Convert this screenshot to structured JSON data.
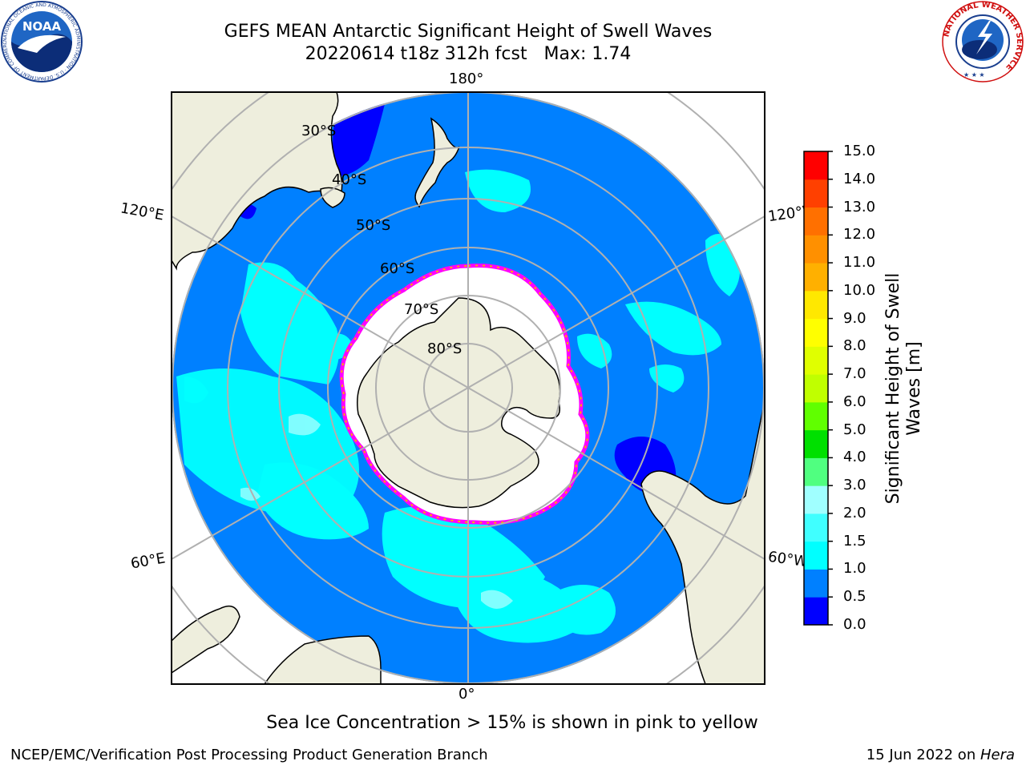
{
  "header": {
    "title": "GEFS MEAN Antarctic Significant Height of Swell Waves",
    "subtitle": "20220614 t18z 312h fcst   Max: 1.74"
  },
  "logos": {
    "noaa_text": "NOAA",
    "noaa_ring_text": "NATIONAL OCEANIC AND ATMOSPHERIC ADMINISTRATION · U.S. DEPARTMENT OF COMMERCE",
    "nws_ring_text": "NATIONAL WEATHER SERVICE"
  },
  "map": {
    "projection": "south-polar-stereographic",
    "longitude_labels": {
      "top": "180°",
      "bottom": "0°",
      "left_upper": "120°E",
      "left_lower": "60°E",
      "right_upper": "120°W",
      "right_lower": "60°W"
    },
    "latitude_labels": [
      "30°S",
      "40°S",
      "50°S",
      "60°S",
      "70°S",
      "80°S"
    ],
    "colors": {
      "ocean_base": "#0080ff",
      "ocean_low": "#0000ff",
      "swell_patch": "#00ffff",
      "swell_patch_light": "#40ffe0",
      "land": "#eeeedd",
      "sea_ice": "#ffffff",
      "ice_edge_pink": "#ff00ff",
      "ice_edge_yellow": "#ffaa00",
      "grid": "#b0b0b0"
    }
  },
  "colorbar": {
    "label_line1": "Significant Height of Swell",
    "label_line2": "Waves [m]",
    "ticks": [
      "15.0",
      "14.0",
      "13.0",
      "12.0",
      "11.0",
      "10.0",
      "9.0",
      "8.0",
      "7.0",
      "6.0",
      "5.0",
      "4.0",
      "3.0",
      "2.0",
      "1.5",
      "1.0",
      "0.5",
      "0.0"
    ],
    "bins": [
      {
        "from": 0.0,
        "to": 0.5,
        "color": "#0000ff"
      },
      {
        "from": 0.5,
        "to": 1.0,
        "color": "#0080ff"
      },
      {
        "from": 1.0,
        "to": 1.5,
        "color": "#00ffff"
      },
      {
        "from": 1.5,
        "to": 2.0,
        "color": "#40ffff"
      },
      {
        "from": 2.0,
        "to": 3.0,
        "color": "#a0ffff"
      },
      {
        "from": 3.0,
        "to": 4.0,
        "color": "#50ff80"
      },
      {
        "from": 4.0,
        "to": 5.0,
        "color": "#00e000"
      },
      {
        "from": 5.0,
        "to": 6.0,
        "color": "#60ff00"
      },
      {
        "from": 6.0,
        "to": 7.0,
        "color": "#c0ff00"
      },
      {
        "from": 7.0,
        "to": 8.0,
        "color": "#e0ff00"
      },
      {
        "from": 8.0,
        "to": 9.0,
        "color": "#ffff00"
      },
      {
        "from": 9.0,
        "to": 10.0,
        "color": "#ffe800"
      },
      {
        "from": 10.0,
        "to": 11.0,
        "color": "#ffb000"
      },
      {
        "from": 11.0,
        "to": 12.0,
        "color": "#ff9000"
      },
      {
        "from": 12.0,
        "to": 13.0,
        "color": "#ff7000"
      },
      {
        "from": 13.0,
        "to": 14.0,
        "color": "#ff4000"
      },
      {
        "from": 14.0,
        "to": 15.0,
        "color": "#ff0000"
      }
    ]
  },
  "note": "Sea Ice Concentration > 15% is shown in pink to yellow",
  "footer": {
    "left": "NCEP/EMC/Verification Post Processing Product Generation Branch",
    "right_date": "15 Jun 2022 on ",
    "right_host": "Hera"
  }
}
